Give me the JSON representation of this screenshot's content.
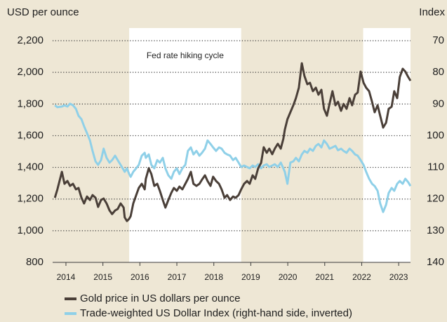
{
  "chart_data": {
    "type": "line",
    "y_axis_label": "USD per ounce",
    "y2_axis_label": "Index",
    "annotation": "Fed rate hiking cycle",
    "highlight_periods": [
      [
        2015.71,
        2018.74
      ],
      [
        2022.04,
        2023.32
      ]
    ],
    "xlim": [
      2013.64,
      2023.32
    ],
    "xticks": [
      2014,
      2015,
      2016,
      2017,
      2018,
      2019,
      2020,
      2021,
      2022,
      2023
    ],
    "ylim": [
      800,
      2200
    ],
    "yticks": [
      800,
      {
        "value": 1000,
        "label": "1,000"
      },
      {
        "value": 1200,
        "label": "1,200"
      },
      {
        "value": 1400,
        "label": "1,400"
      },
      {
        "value": 1600,
        "label": "1,600"
      },
      {
        "value": 1800,
        "label": "1,800"
      },
      {
        "value": 2000,
        "label": "2,000"
      },
      {
        "value": 2200,
        "label": "2,200"
      }
    ],
    "y2lim": [
      140,
      70
    ],
    "y2ticks": [
      70,
      80,
      90,
      100,
      110,
      120,
      130,
      140
    ],
    "grid": true,
    "x": [
      2013.7,
      2013.77,
      2013.89,
      2013.96,
      2014.04,
      2014.11,
      2014.19,
      2014.27,
      2014.34,
      2014.42,
      2014.49,
      2014.57,
      2014.65,
      2014.72,
      2014.8,
      2014.87,
      2014.95,
      2015.02,
      2015.1,
      2015.18,
      2015.25,
      2015.33,
      2015.4,
      2015.48,
      2015.56,
      2015.59,
      2015.65,
      2015.71,
      2015.75,
      2015.82,
      2015.9,
      2015.97,
      2016.05,
      2016.13,
      2016.16,
      2016.24,
      2016.31,
      2016.39,
      2016.47,
      2016.54,
      2016.62,
      2016.69,
      2016.77,
      2016.85,
      2016.92,
      2017.0,
      2017.07,
      2017.15,
      2017.23,
      2017.3,
      2017.38,
      2017.45,
      2017.53,
      2017.61,
      2017.68,
      2017.76,
      2017.83,
      2017.91,
      2017.98,
      2018.06,
      2018.14,
      2018.21,
      2018.29,
      2018.36,
      2018.44,
      2018.52,
      2018.59,
      2018.67,
      2018.74,
      2018.82,
      2018.9,
      2018.97,
      2019.05,
      2019.12,
      2019.2,
      2019.28,
      2019.35,
      2019.43,
      2019.5,
      2019.58,
      2019.65,
      2019.73,
      2019.81,
      2019.88,
      2019.92,
      2019.99,
      2020.07,
      2020.15,
      2020.22,
      2020.3,
      2020.38,
      2020.45,
      2020.53,
      2020.6,
      2020.68,
      2020.76,
      2020.83,
      2020.91,
      2020.98,
      2021.06,
      2021.13,
      2021.21,
      2021.29,
      2021.36,
      2021.44,
      2021.51,
      2021.59,
      2021.67,
      2021.74,
      2021.82,
      2021.89,
      2021.97,
      2022.05,
      2022.12,
      2022.2,
      2022.28,
      2022.35,
      2022.43,
      2022.5,
      2022.58,
      2022.66,
      2022.73,
      2022.81,
      2022.88,
      2022.96,
      2023.03,
      2023.11,
      2023.18,
      2023.26,
      2023.32
    ],
    "series": [
      {
        "name": "Gold price in US dollars per ounce",
        "color": "#4a3f38",
        "values": [
          1208,
          1261,
          1372,
          1296,
          1314,
          1283,
          1296,
          1261,
          1270,
          1208,
          1172,
          1216,
          1194,
          1225,
          1208,
          1150,
          1194,
          1203,
          1172,
          1128,
          1105,
          1128,
          1137,
          1172,
          1146,
          1084,
          1061,
          1075,
          1092,
          1172,
          1225,
          1270,
          1296,
          1261,
          1327,
          1394,
          1358,
          1283,
          1296,
          1252,
          1194,
          1146,
          1194,
          1239,
          1270,
          1252,
          1279,
          1261,
          1296,
          1327,
          1372,
          1296,
          1283,
          1296,
          1323,
          1350,
          1314,
          1283,
          1341,
          1314,
          1296,
          1261,
          1208,
          1225,
          1194,
          1216,
          1208,
          1225,
          1261,
          1296,
          1314,
          1296,
          1350,
          1327,
          1394,
          1429,
          1527,
          1492,
          1518,
          1483,
          1518,
          1549,
          1518,
          1580,
          1638,
          1704,
          1748,
          1792,
          1837,
          1903,
          2058,
          1978,
          1925,
          1934,
          1881,
          1903,
          1859,
          1890,
          1770,
          1726,
          1801,
          1881,
          1792,
          1814,
          1757,
          1801,
          1770,
          1837,
          1792,
          1859,
          1872,
          2005,
          1934,
          1903,
          1881,
          1814,
          1748,
          1792,
          1726,
          1651,
          1682,
          1770,
          1783,
          1881,
          1837,
          1970,
          2023,
          2005,
          1970,
          1947
        ]
      },
      {
        "name": "Trade-weighted US Dollar Index (right-hand side, inverted)",
        "color": "#8fd0e8",
        "axis": "y2",
        "values": [
          90.4,
          91.0,
          90.8,
          90.4,
          90.8,
          89.9,
          90.4,
          91.5,
          93.7,
          94.8,
          97.0,
          99.2,
          101.5,
          104.8,
          108.1,
          109.2,
          107.7,
          104.1,
          107.0,
          108.5,
          107.7,
          106.3,
          107.7,
          109.2,
          110.8,
          111.4,
          110.3,
          112.1,
          113.0,
          111.4,
          110.3,
          109.2,
          106.3,
          105.4,
          107.0,
          105.9,
          109.2,
          110.3,
          107.7,
          108.5,
          107.0,
          110.3,
          112.5,
          113.6,
          111.4,
          110.3,
          112.1,
          110.3,
          109.2,
          104.8,
          103.7,
          105.9,
          104.8,
          106.3,
          105.4,
          104.1,
          101.5,
          102.6,
          103.7,
          104.8,
          103.7,
          104.1,
          105.4,
          105.9,
          106.3,
          107.7,
          107.0,
          108.5,
          109.9,
          109.4,
          109.9,
          110.3,
          109.4,
          109.9,
          109.0,
          110.3,
          109.4,
          109.0,
          109.9,
          109.4,
          109.0,
          109.9,
          108.5,
          110.3,
          111.4,
          115.2,
          108.5,
          108.1,
          107.0,
          108.1,
          105.9,
          104.8,
          105.4,
          104.1,
          104.8,
          103.2,
          102.6,
          103.7,
          101.5,
          102.6,
          104.1,
          103.7,
          103.2,
          104.6,
          104.1,
          104.8,
          105.4,
          104.1,
          104.8,
          105.9,
          106.3,
          107.7,
          109.2,
          111.4,
          113.6,
          115.2,
          115.9,
          117.4,
          121.4,
          124.1,
          121.8,
          118.1,
          116.5,
          117.4,
          115.2,
          114.3,
          115.2,
          113.6,
          114.7,
          115.9
        ]
      }
    ]
  }
}
